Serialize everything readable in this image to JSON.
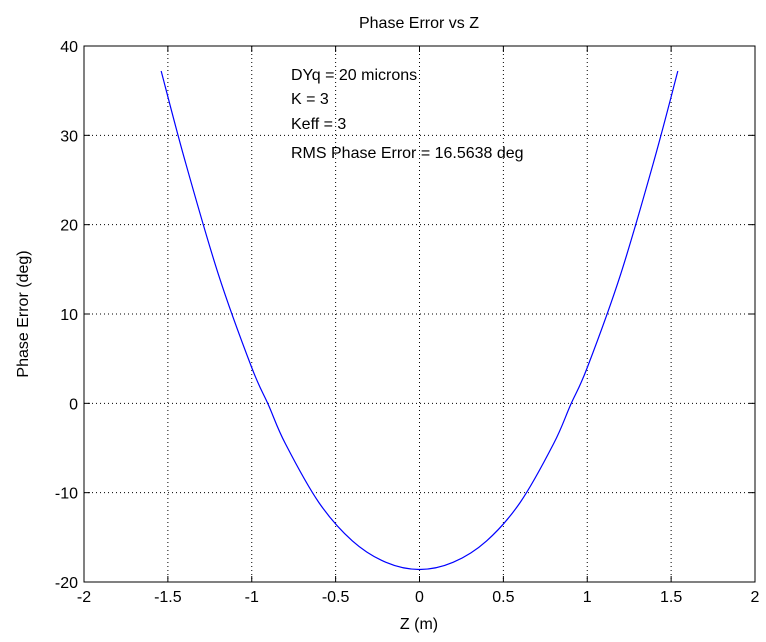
{
  "chart_data": {
    "type": "line",
    "title": "Phase Error vs Z",
    "xlabel": "Z (m)",
    "ylabel": "Phase Error (deg)",
    "xlim": [
      -2,
      2
    ],
    "ylim": [
      -20,
      40
    ],
    "xticks": [
      -2,
      -1.5,
      -1,
      -0.5,
      0,
      0.5,
      1,
      1.5,
      2
    ],
    "xtick_labels": [
      "-2",
      "-1.5",
      "-1",
      "-0.5",
      "0",
      "0.5",
      "1",
      "1.5",
      "2"
    ],
    "yticks": [
      -20,
      -10,
      0,
      10,
      20,
      30,
      40
    ],
    "ytick_labels": [
      "-20",
      "-10",
      "0",
      "10",
      "20",
      "30",
      "40"
    ],
    "grid": true,
    "grid_style": "dotted",
    "series": [
      {
        "color": "#0000ff",
        "x": [
          -1.54,
          -1.4,
          -1.2,
          -1.0,
          -0.9,
          -0.8,
          -0.6,
          -0.4,
          -0.2,
          0.0,
          0.2,
          0.4,
          0.6,
          0.8,
          0.9,
          1.0,
          1.2,
          1.4,
          1.54
        ],
        "y": [
          37.2,
          27.3,
          14.5,
          4.0,
          -0.2,
          -4.5,
          -11.1,
          -15.4,
          -17.8,
          -18.6,
          -17.8,
          -15.4,
          -11.1,
          -4.5,
          -0.2,
          4.0,
          14.5,
          27.3,
          37.2
        ]
      }
    ],
    "annotations": [
      "DYq = 20 microns",
      "K = 3",
      "Keff = 3",
      "RMS Phase Error = 16.5638 deg"
    ]
  }
}
